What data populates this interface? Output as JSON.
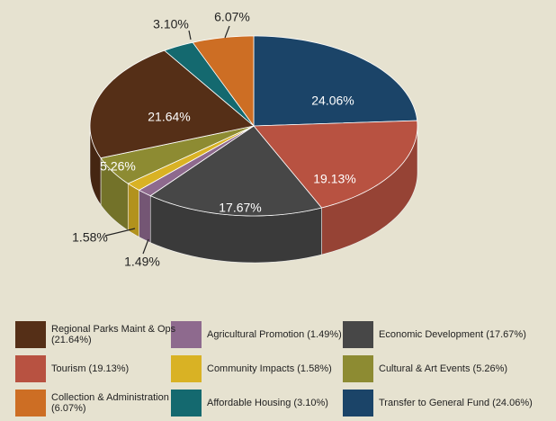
{
  "chart_data": {
    "type": "pie3d",
    "categories": [
      "Transfer to General Fund (24.06%)",
      "Tourism (19.13%)",
      "Economic Development (17.67%)",
      "Agricultural Promotion (1.49%)",
      "Community Impacts (1.58%)",
      "Cultural & Art Events (5.26%)",
      "Regional Parks Maint & Ops (21.64%)",
      "Affordable Housing (3.10%)",
      "Collection & Administration (6.07%)"
    ],
    "values": [
      24.06,
      19.13,
      17.67,
      1.49,
      1.58,
      5.26,
      21.64,
      3.1,
      6.07
    ],
    "value_labels": [
      "24.06%",
      "19.13%",
      "17.67%",
      "1.49%",
      "1.58%",
      "5.26%",
      "21.64%",
      "3.10%",
      "6.07%"
    ],
    "colors": [
      "#1b4468",
      "#b85241",
      "#474747",
      "#8e6a8e",
      "#d9b224",
      "#8d8b32",
      "#552f17",
      "#14696f",
      "#cd6e24"
    ]
  }
}
